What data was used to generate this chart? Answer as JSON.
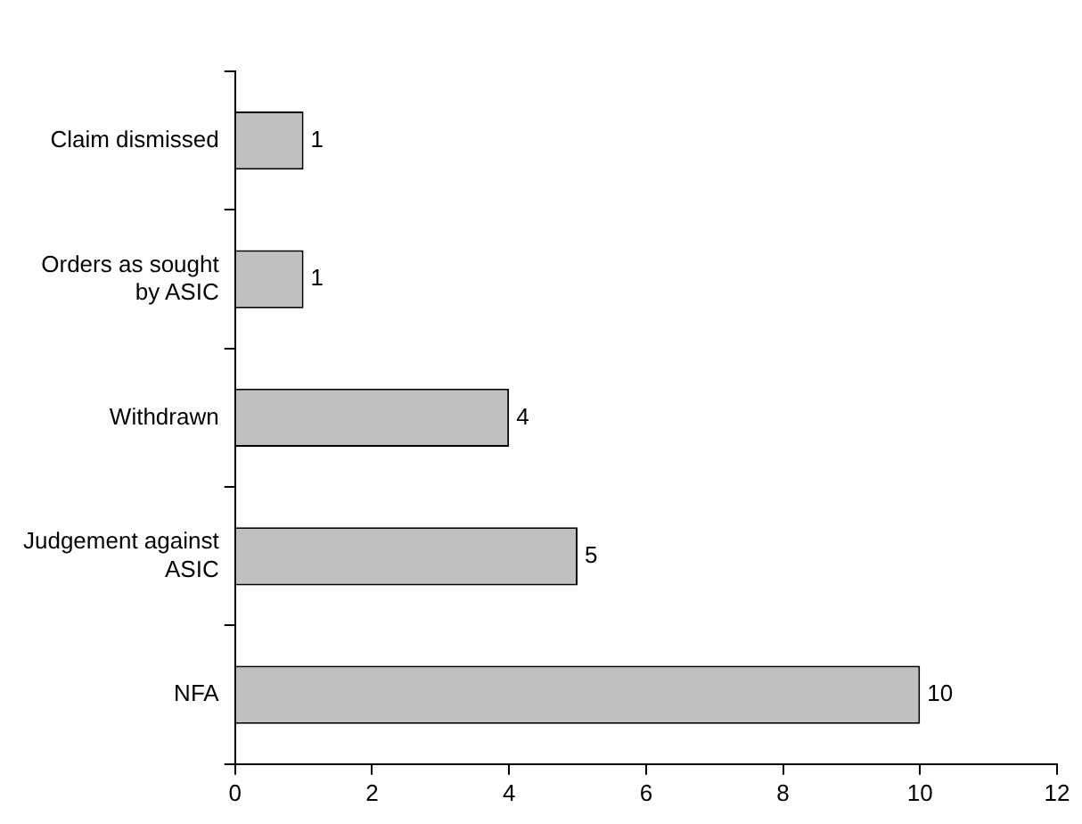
{
  "chart_data": {
    "type": "bar",
    "orientation": "horizontal",
    "categories": [
      "Claim dismissed",
      "Orders as sought by ASIC",
      "Withdrawn",
      "Judgement against ASIC",
      "NFA"
    ],
    "values": [
      1,
      1,
      4,
      5,
      10
    ],
    "color": "#c0c0c0",
    "xlim": [
      0,
      12
    ],
    "xticks": [
      0,
      2,
      4,
      6,
      8,
      10,
      12
    ],
    "grid": false,
    "legend": false,
    "data_labels": true
  }
}
